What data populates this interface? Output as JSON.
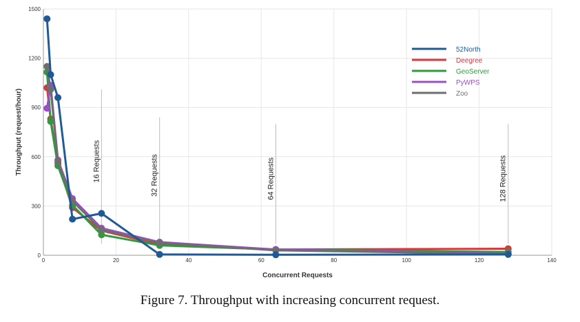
{
  "caption": "Figure 7. Throughput with increasing concurrent request.",
  "colors": {
    "52North": "#1f5a96",
    "Deegree": "#d9363e",
    "GeoServer": "#2e9a3c",
    "PyWPS": "#9b4dca",
    "Zoo": "#6e6e6e",
    "grid": "#e6e6e6",
    "annotation": "#bbbbbb"
  },
  "chart_data": {
    "type": "line",
    "title": "",
    "xlabel": "Concurrent Requests",
    "ylabel": "Throughput (request/hour)",
    "xlim": [
      0,
      140
    ],
    "ylim": [
      0,
      1500
    ],
    "xticks": [
      0,
      20,
      40,
      60,
      80,
      100,
      120,
      140
    ],
    "yticks": [
      0,
      300,
      600,
      900,
      1200,
      1500
    ],
    "grid": true,
    "legend_position": "top-right",
    "series": [
      {
        "name": "52North",
        "color": "#1f5a96",
        "x": [
          1,
          2,
          4,
          8,
          16,
          32,
          64,
          128
        ],
        "y": [
          1440,
          1100,
          960,
          220,
          255,
          5,
          3,
          5
        ]
      },
      {
        "name": "Deegree",
        "color": "#d9363e",
        "x": [
          1,
          2,
          4,
          8,
          16,
          32,
          64,
          128
        ],
        "y": [
          1020,
          830,
          560,
          290,
          150,
          65,
          35,
          40
        ]
      },
      {
        "name": "GeoServer",
        "color": "#2e9a3c",
        "x": [
          1,
          2,
          4,
          8,
          16,
          32,
          64,
          128
        ],
        "y": [
          1115,
          815,
          545,
          305,
          125,
          60,
          35,
          20
        ]
      },
      {
        "name": "PyWPS",
        "color": "#9b4dca",
        "x": [
          1,
          2,
          4,
          8,
          16,
          32,
          64,
          128
        ],
        "y": [
          895,
          1035,
          580,
          345,
          165,
          80,
          35,
          10
        ]
      },
      {
        "name": "Zoo",
        "color": "#6e6e6e",
        "x": [
          1,
          2,
          4,
          8,
          16,
          32,
          64,
          128
        ],
        "y": [
          1150,
          1010,
          570,
          330,
          155,
          75,
          30,
          8
        ]
      }
    ],
    "annotations": [
      {
        "label": "16 Requests",
        "x": 16,
        "y_top": 1010
      },
      {
        "label": "32 Requests",
        "x": 32,
        "y_top": 840
      },
      {
        "label": "64 Requests",
        "x": 64,
        "y_top": 800
      },
      {
        "label": "128 Requests",
        "x": 128,
        "y_top": 800
      }
    ]
  }
}
